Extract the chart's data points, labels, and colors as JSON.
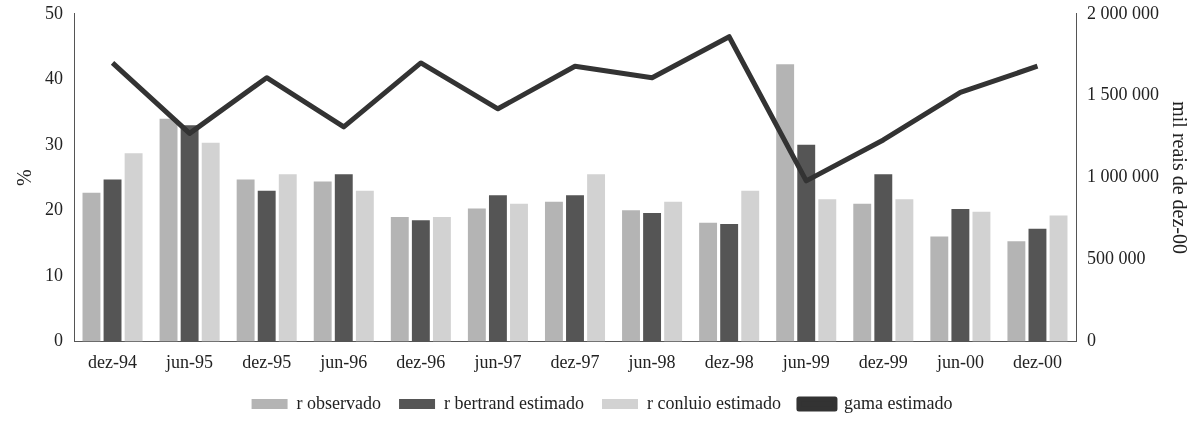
{
  "chart_data": {
    "type": "bar",
    "ylabel": "%",
    "y2label": "mil reais de dez-00",
    "categories": [
      "dez-94",
      "jun-95",
      "dez-95",
      "jun-96",
      "dez-96",
      "jun-97",
      "dez-97",
      "jun-98",
      "dez-98",
      "jun-99",
      "dez-99",
      "jun-00",
      "dez-00"
    ],
    "series": [
      {
        "name": "r observado",
        "color": "#b4b4b4",
        "values": [
          22.7,
          34,
          24.7,
          24.4,
          19,
          20.3,
          21.3,
          20,
          18.1,
          42.3,
          21,
          16,
          15.3
        ]
      },
      {
        "name": "r bertrand estimado",
        "color": "#555555",
        "values": [
          24.7,
          33,
          23,
          25.5,
          18.5,
          22.3,
          22.3,
          19.6,
          17.9,
          30,
          25.5,
          20.2,
          17.2
        ]
      },
      {
        "name": "r conluio estimado",
        "color": "#d2d2d2",
        "values": [
          28.7,
          30.3,
          25.5,
          23,
          19,
          21,
          25.5,
          21.3,
          23,
          21.7,
          21.7,
          19.8,
          19.2
        ]
      },
      {
        "name": "gama estimado",
        "type": "line",
        "axis": "y2",
        "color": "#333333",
        "values": [
          1700000,
          1270000,
          1610000,
          1310000,
          1700000,
          1420000,
          1680000,
          1610000,
          1860000,
          980000,
          1230000,
          1520000,
          1680000
        ]
      }
    ],
    "ylim": [
      0,
      50
    ],
    "yticks": [
      0,
      10,
      20,
      30,
      40,
      50
    ],
    "y2lim": [
      0,
      2000000
    ],
    "y2ticks": [
      0,
      {
        "value": 500000,
        "label": "500 000"
      },
      {
        "value": 1000000,
        "label": "1 000 000"
      },
      {
        "value": 1500000,
        "label": "1 500 000"
      },
      {
        "value": 2000000,
        "label": "2 000 000"
      }
    ],
    "grid": false,
    "legend": "bottom",
    "marker": "none"
  }
}
